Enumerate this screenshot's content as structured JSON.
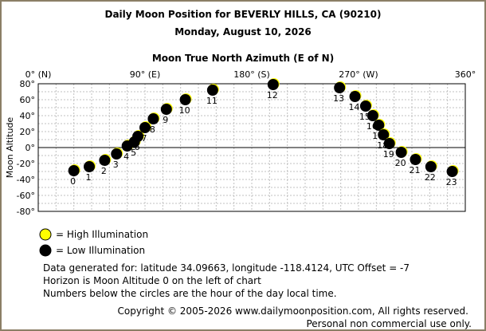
{
  "header": {
    "title": "Daily Moon Position for BEVERLY HILLS, CA (90210)",
    "date": "Monday, August 10, 2026"
  },
  "chart_data": {
    "type": "scatter",
    "title": "Daily Moon Position for BEVERLY HILLS, CA (90210)",
    "subtitle": "Monday, August 10, 2026",
    "xlabel": "Moon True North Azimuth (E of N)",
    "ylabel": "Moon Altitude",
    "xlim": [
      0,
      360
    ],
    "ylim": [
      -80,
      80
    ],
    "x_ticks": [
      {
        "value": 0,
        "label": "0° (N)"
      },
      {
        "value": 90,
        "label": "90° (E)"
      },
      {
        "value": 180,
        "label": "180° (S)"
      },
      {
        "value": 270,
        "label": "270° (W)"
      },
      {
        "value": 360,
        "label": "360°"
      }
    ],
    "y_ticks": [
      {
        "value": 80,
        "label": "80°"
      },
      {
        "value": 60,
        "label": "60°"
      },
      {
        "value": 40,
        "label": "40°"
      },
      {
        "value": 20,
        "label": "20°"
      },
      {
        "value": 0,
        "label": "0°"
      },
      {
        "value": -20,
        "label": "-20°"
      },
      {
        "value": -40,
        "label": "-40°"
      },
      {
        "value": -60,
        "label": "-60°"
      },
      {
        "value": -80,
        "label": "-80°"
      }
    ],
    "grid": true,
    "horizon_altitude": 0,
    "points": [
      {
        "hour": "0",
        "azimuth": 30,
        "altitude": -29,
        "illumination": "low"
      },
      {
        "hour": "1",
        "azimuth": 43,
        "altitude": -24,
        "illumination": "low"
      },
      {
        "hour": "2",
        "azimuth": 56,
        "altitude": -16,
        "illumination": "low"
      },
      {
        "hour": "3",
        "azimuth": 66,
        "altitude": -8,
        "illumination": "low"
      },
      {
        "hour": "4",
        "azimuth": 75,
        "altitude": 2,
        "illumination": "low"
      },
      {
        "hour": "5",
        "azimuth": 81,
        "altitude": 7,
        "illumination": "low"
      },
      {
        "hour": "6",
        "azimuth": 84,
        "altitude": 14,
        "illumination": "low"
      },
      {
        "hour": "7",
        "azimuth": 90,
        "altitude": 25,
        "illumination": "low"
      },
      {
        "hour": "8",
        "azimuth": 97,
        "altitude": 36,
        "illumination": "low"
      },
      {
        "hour": "9",
        "azimuth": 108,
        "altitude": 48,
        "illumination": "low"
      },
      {
        "hour": "10",
        "azimuth": 124,
        "altitude": 60,
        "illumination": "low"
      },
      {
        "hour": "11",
        "azimuth": 147,
        "altitude": 72,
        "illumination": "low"
      },
      {
        "hour": "12",
        "azimuth": 198,
        "altitude": 79,
        "illumination": "low"
      },
      {
        "hour": "13",
        "azimuth": 254,
        "altitude": 75,
        "illumination": "low"
      },
      {
        "hour": "14",
        "azimuth": 267,
        "altitude": 64,
        "illumination": "low"
      },
      {
        "hour": "15",
        "azimuth": 276,
        "altitude": 52,
        "illumination": "low"
      },
      {
        "hour": "16",
        "azimuth": 282,
        "altitude": 40,
        "illumination": "low"
      },
      {
        "hour": "17",
        "azimuth": 287,
        "altitude": 28,
        "illumination": "low"
      },
      {
        "hour": "18",
        "azimuth": 291,
        "altitude": 16,
        "illumination": "low"
      },
      {
        "hour": "19",
        "azimuth": 296,
        "altitude": 5,
        "illumination": "low"
      },
      {
        "hour": "20",
        "azimuth": 306,
        "altitude": -6,
        "illumination": "low"
      },
      {
        "hour": "21",
        "azimuth": 318,
        "altitude": -15,
        "illumination": "low"
      },
      {
        "hour": "22",
        "azimuth": 331,
        "altitude": -24,
        "illumination": "low"
      },
      {
        "hour": "23",
        "azimuth": 349,
        "altitude": -30,
        "illumination": "low"
      }
    ]
  },
  "legend": {
    "high_label": "= High Illumination",
    "low_label": "= Low Illumination",
    "high_color": "#ffff00",
    "low_color": "#000000"
  },
  "info": {
    "line1": "Data generated for: latitude 34.09663, longitude -118.4124, UTC Offset = -7",
    "line2": "Horizon is Moon Altitude 0 on the left of chart",
    "line3": "Numbers below the circles are the hour of the day local time."
  },
  "footer": {
    "copyright": "Copyright © 2005-2026 www.dailymoonposition.com, All rights reserved.",
    "personal": "Personal non commercial use only."
  },
  "colors": {
    "frame": "#8b7f66",
    "grid": "#c0c0c0",
    "horizon": "#000000"
  }
}
